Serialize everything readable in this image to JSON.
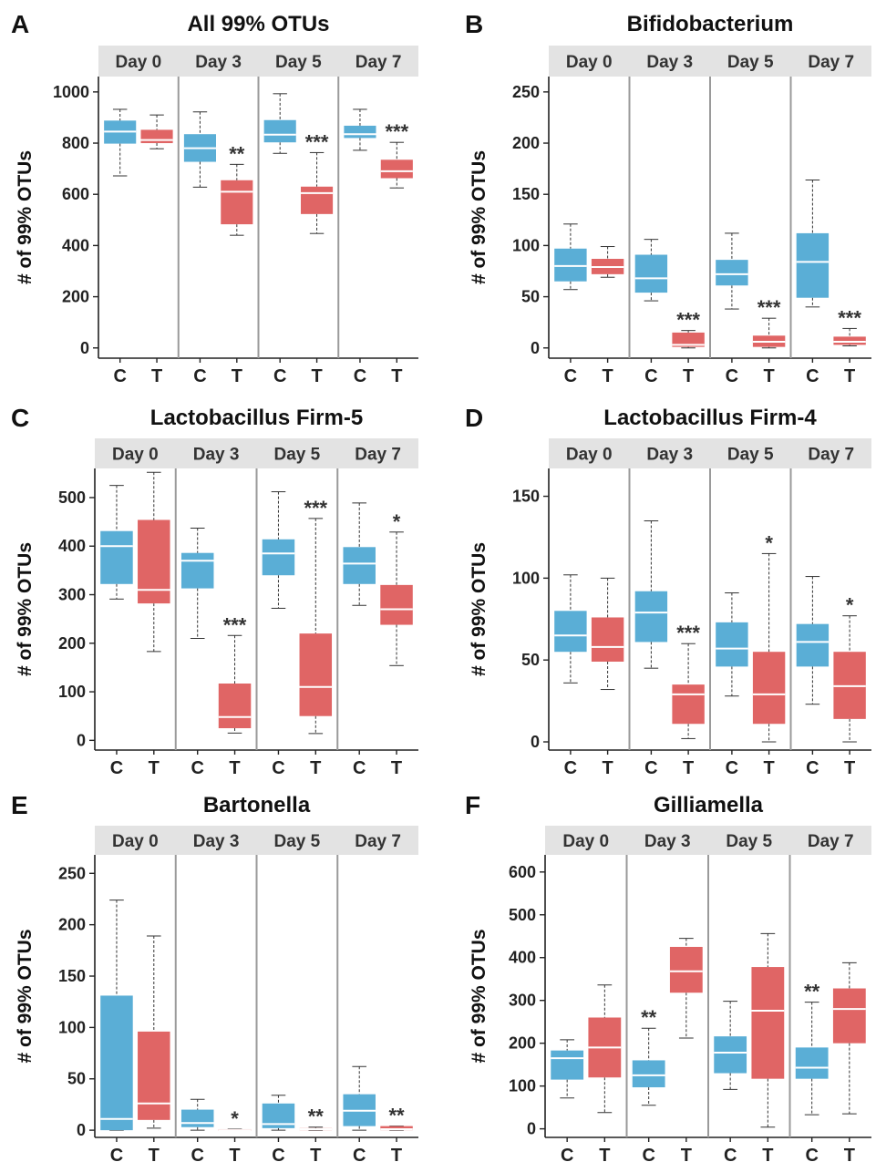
{
  "colors": {
    "control": "#5aaed6",
    "treatment": "#e06565",
    "strip": "#e3e3e3",
    "divider": "#9a9a9a",
    "median": "#ffffff"
  },
  "chart_data": [
    {
      "letter": "A",
      "title": "All 99% OTUs",
      "type": "boxplot",
      "ylabel": "# of 99% OTUs",
      "ylim": [
        -40,
        1060
      ],
      "yticks": [
        0,
        200,
        400,
        600,
        800,
        1000
      ],
      "days": [
        "Day 0",
        "Day 3",
        "Day 5",
        "Day 7"
      ],
      "groups": [
        "C",
        "T"
      ],
      "boxes": [
        [
          {
            "min": 672,
            "q1": 798,
            "median": 845,
            "q3": 888,
            "max": 932,
            "sig": ""
          },
          {
            "min": 778,
            "q1": 800,
            "median": 812,
            "q3": 852,
            "max": 910,
            "sig": ""
          }
        ],
        [
          {
            "min": 628,
            "q1": 727,
            "median": 780,
            "q3": 835,
            "max": 922,
            "sig": ""
          },
          {
            "min": 440,
            "q1": 483,
            "median": 610,
            "q3": 655,
            "max": 717,
            "sig": "**"
          }
        ],
        [
          {
            "min": 760,
            "q1": 803,
            "median": 833,
            "q3": 890,
            "max": 993,
            "sig": ""
          },
          {
            "min": 447,
            "q1": 523,
            "median": 605,
            "q3": 630,
            "max": 763,
            "sig": "***"
          }
        ],
        [
          {
            "min": 772,
            "q1": 820,
            "median": 835,
            "q3": 868,
            "max": 932,
            "sig": ""
          },
          {
            "min": 625,
            "q1": 663,
            "median": 690,
            "q3": 735,
            "max": 803,
            "sig": "***"
          }
        ]
      ]
    },
    {
      "letter": "B",
      "title": "Bifidobacterium",
      "type": "boxplot",
      "ylabel": "# of 99% OTUs",
      "ylim": [
        -10,
        265
      ],
      "yticks": [
        0,
        50,
        100,
        150,
        200,
        250
      ],
      "days": [
        "Day 0",
        "Day 3",
        "Day 5",
        "Day 7"
      ],
      "groups": [
        "C",
        "T"
      ],
      "boxes": [
        [
          {
            "min": 57,
            "q1": 65,
            "median": 80,
            "q3": 97,
            "max": 121,
            "sig": ""
          },
          {
            "min": 69,
            "q1": 72,
            "median": 79,
            "q3": 87,
            "max": 99,
            "sig": ""
          }
        ],
        [
          {
            "min": 46,
            "q1": 54,
            "median": 68,
            "q3": 91,
            "max": 106,
            "sig": ""
          },
          {
            "min": 0,
            "q1": 1,
            "median": 3,
            "q3": 15,
            "max": 17,
            "sig": "***"
          }
        ],
        [
          {
            "min": 38,
            "q1": 61,
            "median": 72,
            "q3": 86,
            "max": 112,
            "sig": ""
          },
          {
            "min": 0,
            "q1": 1,
            "median": 6,
            "q3": 12,
            "max": 29,
            "sig": "***"
          }
        ],
        [
          {
            "min": 40,
            "q1": 49,
            "median": 84,
            "q3": 112,
            "max": 164,
            "sig": ""
          },
          {
            "min": 2,
            "q1": 3,
            "median": 6,
            "q3": 11,
            "max": 19,
            "sig": "***"
          }
        ]
      ]
    },
    {
      "letter": "C",
      "title": "Lactobacillus Firm-5",
      "type": "boxplot",
      "ylabel": "# of 99% OTUs",
      "ylim": [
        -20,
        560
      ],
      "yticks": [
        0,
        100,
        200,
        300,
        400,
        500
      ],
      "days": [
        "Day 0",
        "Day 3",
        "Day 5",
        "Day 7"
      ],
      "groups": [
        "C",
        "T"
      ],
      "boxes": [
        [
          {
            "min": 291,
            "q1": 322,
            "median": 400,
            "q3": 431,
            "max": 525,
            "sig": ""
          },
          {
            "min": 183,
            "q1": 282,
            "median": 310,
            "q3": 454,
            "max": 552,
            "sig": ""
          }
        ],
        [
          {
            "min": 210,
            "q1": 313,
            "median": 370,
            "q3": 386,
            "max": 437,
            "sig": ""
          },
          {
            "min": 15,
            "q1": 25,
            "median": 48,
            "q3": 117,
            "max": 216,
            "sig": "***"
          }
        ],
        [
          {
            "min": 272,
            "q1": 340,
            "median": 385,
            "q3": 414,
            "max": 512,
            "sig": ""
          },
          {
            "min": 14,
            "q1": 50,
            "median": 110,
            "q3": 220,
            "max": 457,
            "sig": "***"
          }
        ],
        [
          {
            "min": 278,
            "q1": 322,
            "median": 364,
            "q3": 398,
            "max": 489,
            "sig": ""
          },
          {
            "min": 154,
            "q1": 238,
            "median": 270,
            "q3": 320,
            "max": 429,
            "sig": "*"
          }
        ]
      ]
    },
    {
      "letter": "D",
      "title": "Lactobacillus Firm-4",
      "type": "boxplot",
      "ylabel": "# of 99% OTUs",
      "ylim": [
        -5,
        167
      ],
      "yticks": [
        0,
        50,
        100,
        150
      ],
      "days": [
        "Day 0",
        "Day 3",
        "Day 5",
        "Day 7"
      ],
      "groups": [
        "C",
        "T"
      ],
      "boxes": [
        [
          {
            "min": 36,
            "q1": 55,
            "median": 65,
            "q3": 80,
            "max": 102,
            "sig": ""
          },
          {
            "min": 32,
            "q1": 49,
            "median": 58,
            "q3": 76,
            "max": 100,
            "sig": ""
          }
        ],
        [
          {
            "min": 45,
            "q1": 61,
            "median": 79,
            "q3": 92,
            "max": 135,
            "sig": ""
          },
          {
            "min": 2,
            "q1": 11,
            "median": 29,
            "q3": 35,
            "max": 60,
            "sig": "***"
          }
        ],
        [
          {
            "min": 28,
            "q1": 46,
            "median": 57,
            "q3": 73,
            "max": 91,
            "sig": ""
          },
          {
            "min": 0,
            "q1": 11,
            "median": 29,
            "q3": 55,
            "max": 115,
            "sig": "*"
          }
        ],
        [
          {
            "min": 23,
            "q1": 46,
            "median": 61,
            "q3": 72,
            "max": 101,
            "sig": ""
          },
          {
            "min": 0,
            "q1": 14,
            "median": 34,
            "q3": 55,
            "max": 77,
            "sig": "*"
          }
        ]
      ]
    },
    {
      "letter": "E",
      "title": "Bartonella",
      "type": "boxplot",
      "ylabel": "# of 99% OTUs",
      "ylim": [
        -7,
        268
      ],
      "yticks": [
        0,
        50,
        100,
        150,
        200,
        250
      ],
      "days": [
        "Day 0",
        "Day 3",
        "Day 5",
        "Day 7"
      ],
      "groups": [
        "C",
        "T"
      ],
      "boxes": [
        [
          {
            "min": 0,
            "q1": 0,
            "median": 11,
            "q3": 131,
            "max": 224,
            "sig": ""
          },
          {
            "min": 2,
            "q1": 10,
            "median": 26,
            "q3": 96,
            "max": 189,
            "sig": ""
          }
        ],
        [
          {
            "min": 0,
            "q1": 3,
            "median": 7,
            "q3": 20,
            "max": 30,
            "sig": ""
          },
          {
            "min": 0,
            "q1": 0,
            "median": 0,
            "q3": 1,
            "max": 1,
            "sig": "*"
          }
        ],
        [
          {
            "min": 0,
            "q1": 2,
            "median": 6,
            "q3": 26,
            "max": 34,
            "sig": ""
          },
          {
            "min": 0,
            "q1": 0,
            "median": 1,
            "q3": 2,
            "max": 3,
            "sig": "**"
          }
        ],
        [
          {
            "min": 0,
            "q1": 4,
            "median": 19,
            "q3": 35,
            "max": 62,
            "sig": ""
          },
          {
            "min": 0,
            "q1": 0,
            "median": 1,
            "q3": 4,
            "max": 4,
            "sig": "**"
          }
        ]
      ]
    },
    {
      "letter": "F",
      "title": "Gilliamella",
      "type": "boxplot",
      "ylabel": "# of 99% OTUs",
      "ylim": [
        -20,
        640
      ],
      "yticks": [
        0,
        100,
        200,
        300,
        400,
        500,
        600
      ],
      "days": [
        "Day 0",
        "Day 3",
        "Day 5",
        "Day 7"
      ],
      "groups": [
        "C",
        "T"
      ],
      "boxes": [
        [
          {
            "min": 72,
            "q1": 115,
            "median": 165,
            "q3": 183,
            "max": 208,
            "sig": ""
          },
          {
            "min": 38,
            "q1": 120,
            "median": 190,
            "q3": 260,
            "max": 336,
            "sig": ""
          }
        ],
        [
          {
            "min": 55,
            "q1": 97,
            "median": 125,
            "q3": 160,
            "max": 235,
            "sig": "**"
          },
          {
            "min": 212,
            "q1": 318,
            "median": 368,
            "q3": 425,
            "max": 445,
            "sig": ""
          }
        ],
        [
          {
            "min": 92,
            "q1": 130,
            "median": 178,
            "q3": 216,
            "max": 298,
            "sig": ""
          },
          {
            "min": 4,
            "q1": 117,
            "median": 276,
            "q3": 378,
            "max": 456,
            "sig": ""
          }
        ],
        [
          {
            "min": 33,
            "q1": 117,
            "median": 143,
            "q3": 190,
            "max": 296,
            "sig": "**"
          },
          {
            "min": 35,
            "q1": 200,
            "median": 280,
            "q3": 328,
            "max": 388,
            "sig": ""
          }
        ]
      ]
    }
  ]
}
